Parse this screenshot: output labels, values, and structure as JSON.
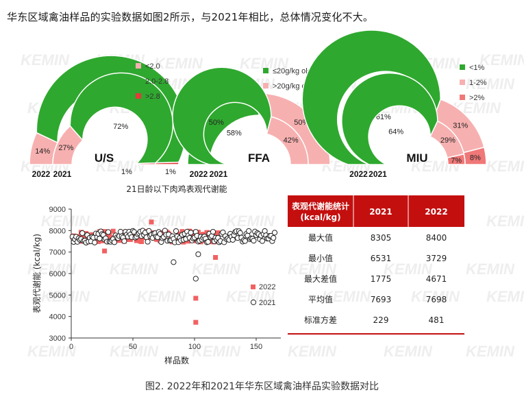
{
  "intro": "华东区域禽油样品的实验数据如图2所示，与2021年相比，总体情况变化不大。",
  "caption": "图2. 2022年和2021年华东区域禽油样品实验数据对比",
  "watermark": "KEMIN",
  "colors": {
    "green_dark": "#2fa82f",
    "green_light": "#3cb83c",
    "red_light": "#f7b0b0",
    "red_mid": "#f07878",
    "red_dark": "#e23b3b",
    "marker_2022": "#f26161",
    "header_red": "#c40f0f"
  },
  "chart_data": [
    {
      "type": "pie",
      "title": "U/S",
      "rings": [
        "2022",
        "2021"
      ],
      "legend": [
        {
          "label": "<2.0",
          "color": "#f7b0b0"
        },
        {
          "label": "2.0-2.8",
          "color": "#2fa82f"
        },
        {
          "label": ">2.8",
          "color": "#e23b3b"
        }
      ],
      "series": [
        {
          "name": "2022",
          "values": [
            14,
            85,
            1
          ]
        },
        {
          "name": "2021",
          "values": [
            27,
            72,
            1
          ]
        }
      ]
    },
    {
      "type": "pie",
      "title": "FFA",
      "rings": [
        "2022",
        "2021"
      ],
      "legend": [
        {
          "label": "≤20g/kg oleic",
          "color": "#2fa82f"
        },
        {
          "label": ">20g/kg oleic",
          "color": "#f7b0b0"
        }
      ],
      "series": [
        {
          "name": "2022",
          "values": [
            50,
            50
          ]
        },
        {
          "name": "2021",
          "values": [
            58,
            42
          ]
        }
      ]
    },
    {
      "type": "pie",
      "title": "MIU",
      "rings": [
        "2022",
        "2021"
      ],
      "legend": [
        {
          "label": "<1%",
          "color": "#2fa82f"
        },
        {
          "label": "1-2%",
          "color": "#f7b0b0"
        },
        {
          "label": ">2%",
          "color": "#f07878"
        }
      ],
      "series": [
        {
          "name": "2022",
          "values": [
            61,
            31,
            8
          ]
        },
        {
          "name": "2021",
          "values": [
            64,
            29,
            7
          ]
        }
      ]
    },
    {
      "type": "scatter",
      "title": "21日龄以下肉鸡表观代谢能",
      "xlabel": "样品数",
      "ylabel": "表观代谢能 (kcal/kg)",
      "xlim": [
        0,
        170
      ],
      "ylim": [
        3000,
        9000
      ],
      "xticks": [
        0,
        50,
        100,
        150
      ],
      "yticks": [
        3000,
        4000,
        5000,
        6000,
        7000,
        8000,
        9000
      ],
      "series": [
        {
          "name": "2022",
          "marker": "square"
        },
        {
          "name": "2021",
          "marker": "circle"
        }
      ],
      "outliers_2022": [
        [
          101,
          4850
        ],
        [
          101,
          3729
        ],
        [
          65,
          8400
        ],
        [
          27,
          7050
        ],
        [
          117,
          6750
        ]
      ],
      "outliers_2021": [
        [
          83,
          6531
        ],
        [
          101,
          5760
        ],
        [
          103,
          6900
        ]
      ]
    },
    {
      "type": "table",
      "header": [
        "表观代谢能统计\n(kcal/kg)",
        "2021",
        "2022"
      ],
      "rows": [
        [
          "最大值",
          "8305",
          "8400"
        ],
        [
          "最小值",
          "6531",
          "3729"
        ],
        [
          "最大差值",
          "1775",
          "4671"
        ],
        [
          "平均值",
          "7693",
          "7698"
        ],
        [
          "标准方差",
          "229",
          "481"
        ]
      ]
    }
  ]
}
